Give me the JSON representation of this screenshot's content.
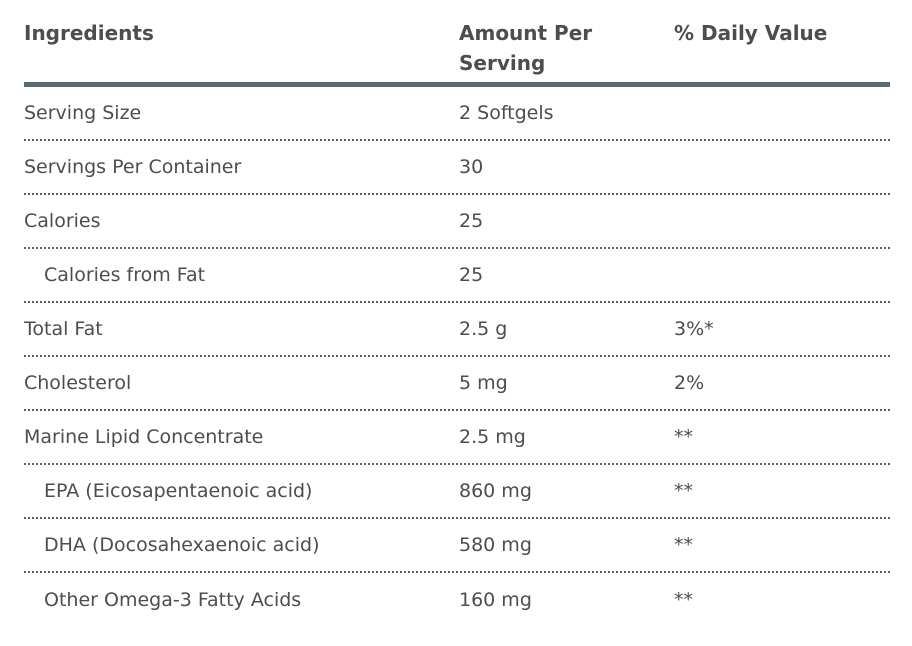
{
  "table": {
    "columns": [
      {
        "label": "Ingredients"
      },
      {
        "label": "Amount Per Serving"
      },
      {
        "label": "% Daily Value"
      }
    ],
    "rows": [
      {
        "ingredient": "Serving Size",
        "amount": "2 Softgels",
        "daily_value": "",
        "indent": false
      },
      {
        "ingredient": "Servings Per Container",
        "amount": "30",
        "daily_value": "",
        "indent": false
      },
      {
        "ingredient": "Calories",
        "amount": "25",
        "daily_value": "",
        "indent": false
      },
      {
        "ingredient": "Calories from Fat",
        "amount": "25",
        "daily_value": "",
        "indent": true
      },
      {
        "ingredient": "Total Fat",
        "amount": "2.5 g",
        "daily_value": "3%*",
        "indent": false
      },
      {
        "ingredient": "Cholesterol",
        "amount": "5 mg",
        "daily_value": "2%",
        "indent": false
      },
      {
        "ingredient": "Marine Lipid Concentrate",
        "amount": "2.5 mg",
        "daily_value": "**",
        "indent": false
      },
      {
        "ingredient": "EPA (Eicosapentaenoic acid)",
        "amount": "860 mg",
        "daily_value": "**",
        "indent": true
      },
      {
        "ingredient": "DHA (Docosahexaenoic acid)",
        "amount": "580 mg",
        "daily_value": "**",
        "indent": true
      },
      {
        "ingredient": "Other Omega-3 Fatty Acids",
        "amount": "160 mg",
        "daily_value": "**",
        "indent": true
      }
    ]
  },
  "colors": {
    "text": "#4d4d4d",
    "header_rule": "#5a6b74",
    "row_divider": "#50606b",
    "background": "#ffffff"
  }
}
